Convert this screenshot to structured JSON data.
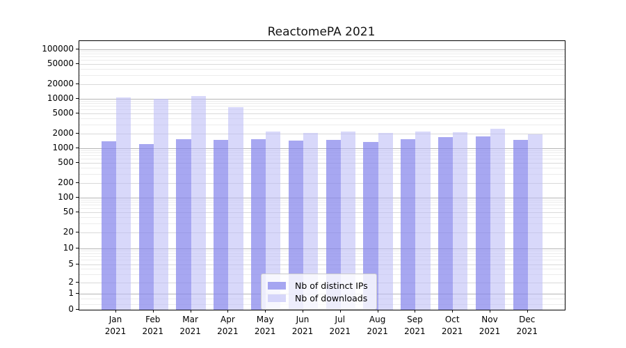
{
  "title": "ReactomePA 2021",
  "chart_data": {
    "type": "bar",
    "title": "ReactomePA 2021",
    "categories": [
      "Jan 2021",
      "Feb 2021",
      "Mar 2021",
      "Apr 2021",
      "May 2021",
      "Jun 2021",
      "Jul 2021",
      "Aug 2021",
      "Sep 2021",
      "Oct 2021",
      "Nov 2021",
      "Dec 2021"
    ],
    "series": [
      {
        "name": "Nb of distinct IPs",
        "color": "rgba(133,133,235,0.72)",
        "values": [
          1400,
          1210,
          1520,
          1510,
          1530,
          1450,
          1480,
          1360,
          1550,
          1680,
          1780,
          1500
        ]
      },
      {
        "name": "Nb of downloads",
        "color": "rgba(187,187,246,0.58)",
        "values": [
          10800,
          10100,
          11500,
          6800,
          2200,
          2060,
          2230,
          2080,
          2210,
          2150,
          2470,
          1930
        ]
      }
    ],
    "yscale": "symlog",
    "ylim": [
      0,
      150000
    ],
    "yticks": [
      100000,
      50000,
      20000,
      10000,
      5000,
      2000,
      1000,
      500,
      200,
      100,
      50,
      20,
      10,
      5,
      2,
      1,
      0
    ],
    "xlabel": "",
    "ylabel": "",
    "grid": true,
    "legend_position": "lower center"
  },
  "legend": {
    "items": [
      {
        "label": "Nb of distinct IPs",
        "swatch_color": "rgba(133,133,235,0.72)"
      },
      {
        "label": "Nb of downloads",
        "swatch_color": "rgba(187,187,246,0.58)"
      }
    ]
  },
  "colors": {
    "background": "#ffffff",
    "axis": "#000000",
    "grid_major": "#b5b5b5",
    "grid_mid": "#d9d9d9",
    "grid_minor": "#ececec",
    "bar_distinct_ips": "rgba(133,133,235,0.72)",
    "bar_downloads": "rgba(187,187,246,0.58)"
  }
}
